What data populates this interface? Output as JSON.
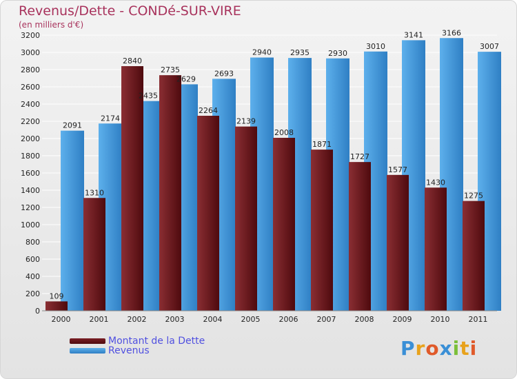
{
  "header": {
    "title": "Revenus/Dette - CONDé-SUR-VIRE",
    "subtitle": "(en milliers d'€)"
  },
  "logo": {
    "text": "Proxiti",
    "letters": [
      {
        "ch": "P",
        "color": "#3a8fd6"
      },
      {
        "ch": "r",
        "color": "#e8a21c"
      },
      {
        "ch": "o",
        "color": "#e05a2a"
      },
      {
        "ch": "x",
        "color": "#3a8fd6"
      },
      {
        "ch": "i",
        "color": "#7bbf3a"
      },
      {
        "ch": "t",
        "color": "#e8a21c"
      },
      {
        "ch": "i",
        "color": "#e05a2a"
      }
    ]
  },
  "colors": {
    "dette_top": "#8a2e33",
    "dette_bottom": "#4e0a0e",
    "revenus_top": "#5db0ec",
    "revenus_bottom": "#2f7fc4",
    "gridline": "#ffffff",
    "axis_text": "#222222"
  },
  "chart_data": {
    "type": "bar",
    "categories": [
      "2000",
      "2001",
      "2002",
      "2003",
      "2004",
      "2005",
      "2006",
      "2007",
      "2008",
      "2009",
      "2010",
      "2011"
    ],
    "series": [
      {
        "name": "Montant de la Dette",
        "values": [
          109,
          1310,
          2840,
          2735,
          2264,
          2139,
          2008,
          1871,
          1727,
          1577,
          1430,
          1275
        ],
        "color": "#6e1a20"
      },
      {
        "name": "Revenus",
        "values": [
          2091,
          2174,
          2435,
          2629,
          2693,
          2940,
          2935,
          2930,
          3010,
          3141,
          3166,
          3007
        ],
        "color": "#4a9de0"
      }
    ],
    "ylim": [
      0,
      3200
    ],
    "yticks": [
      0,
      200,
      400,
      600,
      800,
      1000,
      1200,
      1400,
      1600,
      1800,
      2000,
      2200,
      2400,
      2600,
      2800,
      3000,
      3200
    ],
    "grid": true,
    "legend": "bottom-left",
    "xlabel": "",
    "ylabel": ""
  }
}
